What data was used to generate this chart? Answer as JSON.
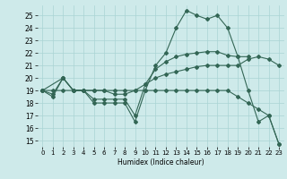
{
  "xlabel": "Humidex (Indice chaleur)",
  "xlim": [
    -0.5,
    23.5
  ],
  "ylim": [
    14.5,
    25.8
  ],
  "yticks": [
    15,
    16,
    17,
    18,
    19,
    20,
    21,
    22,
    23,
    24,
    25
  ],
  "xticks": [
    0,
    1,
    2,
    3,
    4,
    5,
    6,
    7,
    8,
    9,
    10,
    11,
    12,
    13,
    14,
    15,
    16,
    17,
    18,
    19,
    20,
    21,
    22,
    23
  ],
  "bg_color": "#ceeaea",
  "grid_color": "#aad4d4",
  "line_color": "#336655",
  "lines": [
    {
      "x": [
        0,
        1,
        2,
        3,
        4,
        5,
        6,
        7,
        8,
        9,
        10,
        11,
        12,
        13,
        14,
        15,
        16,
        17,
        18,
        19,
        20,
        21,
        22,
        23
      ],
      "y": [
        19,
        18.5,
        20,
        19,
        19,
        18,
        18,
        18,
        18,
        16.5,
        19,
        21,
        22,
        24,
        25.4,
        25,
        24.7,
        25,
        24,
        21.7,
        19,
        16.5,
        17,
        14.7
      ]
    },
    {
      "x": [
        0,
        1,
        2,
        3,
        4,
        5,
        6,
        7,
        8,
        9,
        10,
        11,
        12,
        13,
        14,
        15,
        16,
        17,
        18,
        19,
        20
      ],
      "y": [
        19,
        18.7,
        20,
        19,
        19,
        18.3,
        18.3,
        18.3,
        18.3,
        17,
        19.5,
        20.7,
        21.3,
        21.7,
        21.9,
        22,
        22.1,
        22.1,
        21.8,
        21.7,
        21.7
      ]
    },
    {
      "x": [
        0,
        2,
        3,
        4,
        5,
        6,
        7,
        8,
        9,
        10,
        11,
        12,
        13,
        14,
        15,
        16,
        17,
        18,
        19,
        20,
        21,
        22,
        23
      ],
      "y": [
        19,
        20,
        19,
        19,
        19,
        19,
        18.7,
        18.7,
        19,
        19.5,
        20,
        20.3,
        20.5,
        20.7,
        20.9,
        21,
        21,
        21,
        21,
        21.5,
        21.7,
        21.5,
        21
      ]
    },
    {
      "x": [
        0,
        1,
        2,
        3,
        4,
        5,
        6,
        7,
        8,
        9,
        10,
        11,
        12,
        13,
        14,
        15,
        16,
        17,
        18,
        19,
        20,
        21,
        22,
        23
      ],
      "y": [
        19,
        19,
        19,
        19,
        19,
        19,
        19,
        19,
        19,
        19,
        19,
        19,
        19,
        19,
        19,
        19,
        19,
        19,
        19,
        18.5,
        18,
        17.5,
        17,
        14.7
      ]
    }
  ]
}
